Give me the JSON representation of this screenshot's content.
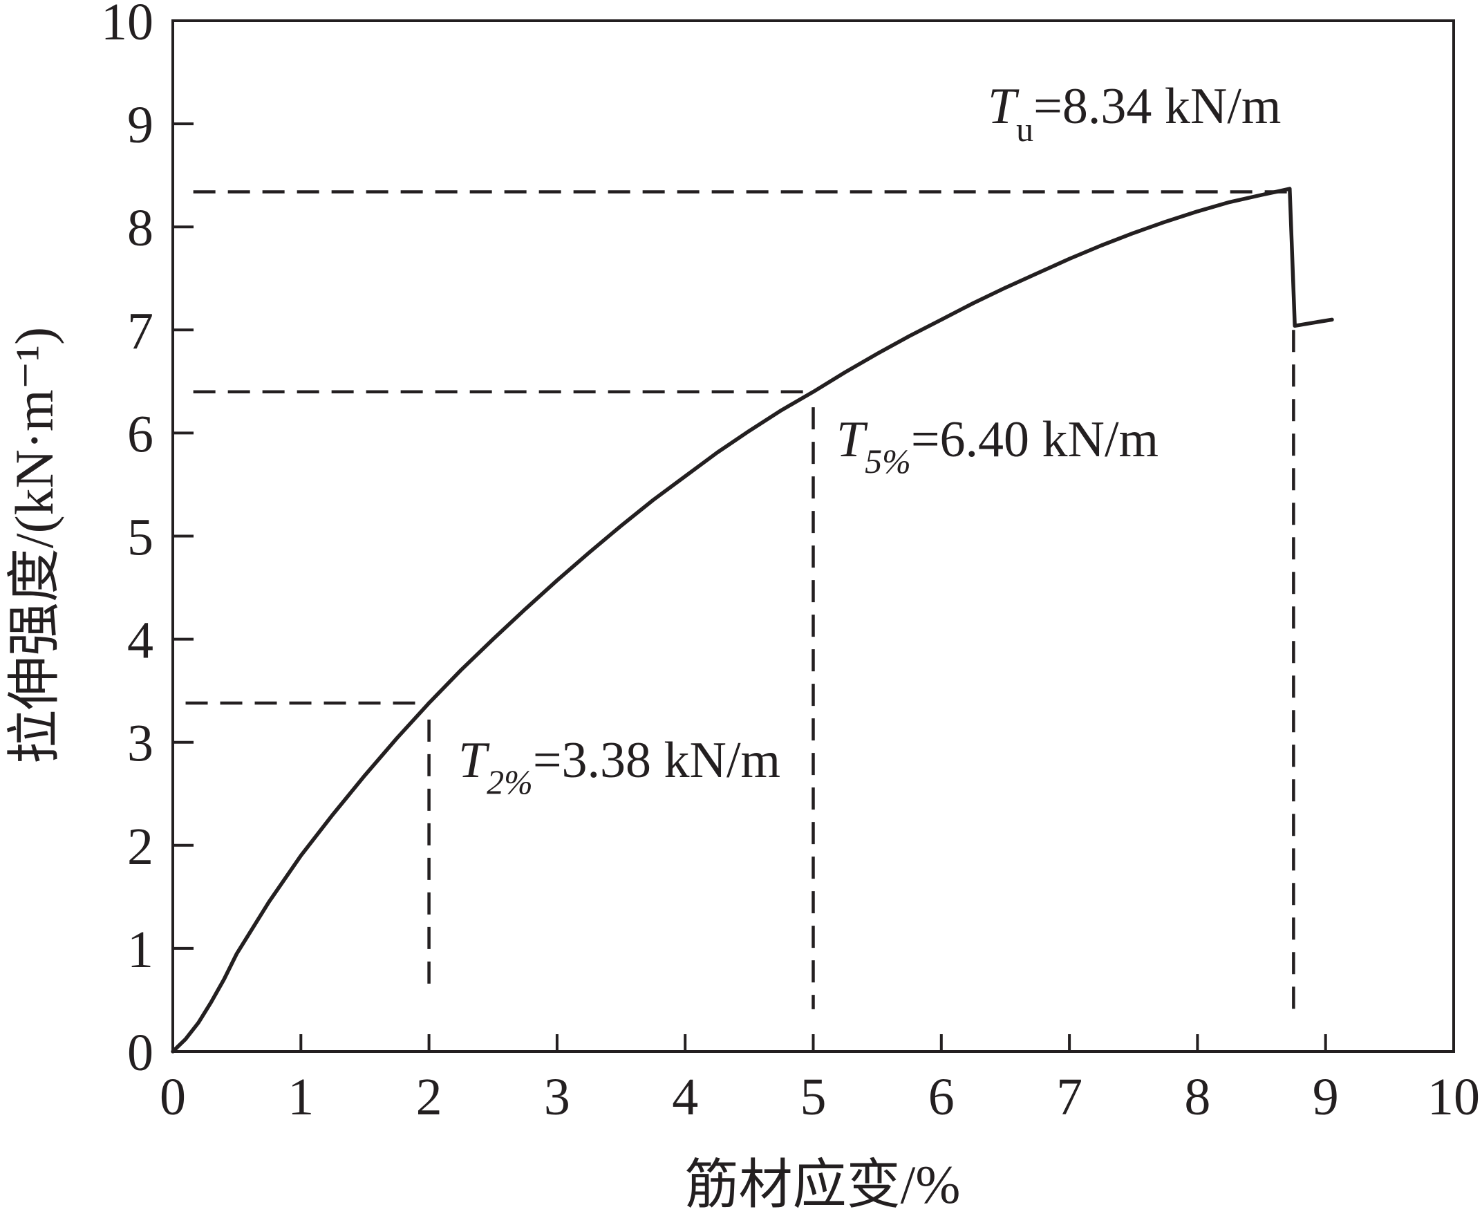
{
  "chart_data": {
    "type": "line",
    "xlabel": "筋材应变/%",
    "ylabel": "拉伸强度/(kN·m⁻¹)",
    "xlim": [
      0,
      10
    ],
    "ylim": [
      0,
      10
    ],
    "xticks": [
      0,
      1,
      2,
      3,
      4,
      5,
      6,
      7,
      8,
      9,
      10
    ],
    "yticks": [
      0,
      1,
      2,
      3,
      4,
      5,
      6,
      7,
      8,
      9,
      10
    ],
    "grid": false,
    "legend": "none",
    "series": [
      {
        "color": "#231f20",
        "style": "solid",
        "x": [
          0,
          0.1,
          0.2,
          0.3,
          0.4,
          0.5,
          0.75,
          1.0,
          1.25,
          1.5,
          1.75,
          2.0,
          2.25,
          2.5,
          2.75,
          3.0,
          3.25,
          3.5,
          3.75,
          4.0,
          4.25,
          4.5,
          4.75,
          5.0,
          5.25,
          5.5,
          5.75,
          6.0,
          6.25,
          6.5,
          6.75,
          7.0,
          7.25,
          7.5,
          7.75,
          8.0,
          8.25,
          8.5,
          8.65,
          8.72,
          8.76,
          8.9,
          9.05
        ],
        "y": [
          0,
          0.12,
          0.28,
          0.48,
          0.7,
          0.95,
          1.45,
          1.9,
          2.3,
          2.68,
          3.04,
          3.38,
          3.7,
          4.0,
          4.29,
          4.57,
          4.84,
          5.1,
          5.35,
          5.58,
          5.81,
          6.02,
          6.22,
          6.4,
          6.59,
          6.77,
          6.94,
          7.1,
          7.26,
          7.41,
          7.55,
          7.69,
          7.82,
          7.94,
          8.05,
          8.15,
          8.24,
          8.31,
          8.35,
          8.37,
          7.04,
          7.07,
          7.1
        ]
      }
    ],
    "annotations": [
      {
        "symbol": "T",
        "subscript": "2%",
        "text": "=3.38 kN/m",
        "x": 2.0,
        "y": 3.38
      },
      {
        "symbol": "T",
        "subscript": "5%",
        "text": "=6.40 kN/m",
        "x": 5.0,
        "y": 6.4
      },
      {
        "symbol": "T",
        "subscript": "u",
        "text": "=8.34 kN/m",
        "x": 8.75,
        "y": 8.34
      }
    ]
  }
}
